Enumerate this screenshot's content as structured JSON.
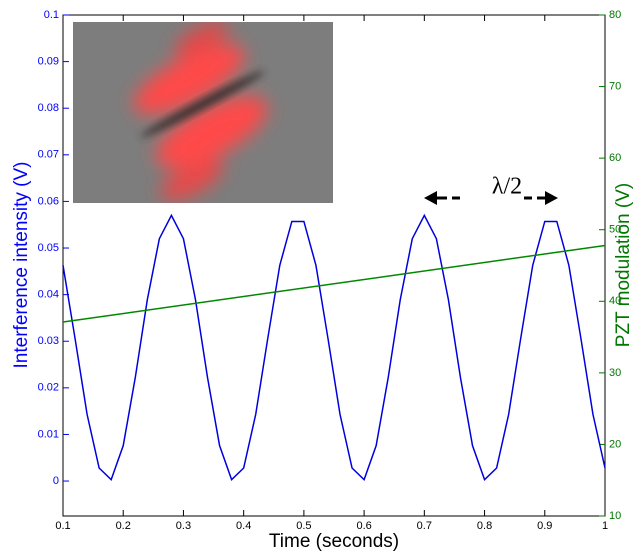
{
  "chart_data": {
    "type": "line",
    "xlabel": "Time (seconds)",
    "ylabel": "Interference intensity (V)",
    "y2label": "PZT modulation (V)",
    "annotation": "λ/2",
    "xlim": [
      0.1,
      1
    ],
    "xticks": [
      0.1,
      0.2,
      0.3,
      0.4,
      0.5,
      0.6,
      0.7,
      0.8,
      0.9,
      1
    ],
    "ylim": [
      -0.0075,
      0.1
    ],
    "yticks": [
      0,
      0.01,
      0.02,
      0.03,
      0.04,
      0.05,
      0.06,
      0.07,
      0.08,
      0.09,
      0.1
    ],
    "y2lim": [
      10,
      80
    ],
    "y2ticks": [
      10,
      20,
      30,
      40,
      50,
      60,
      70,
      80
    ],
    "ycolor": "#0000ff",
    "y2color": "#007700",
    "series": [
      {
        "color": "#0000dd",
        "x": [
          0.1,
          0.12,
          0.14,
          0.16,
          0.18,
          0.2,
          0.22,
          0.24,
          0.26,
          0.28,
          0.3,
          0.32,
          0.34,
          0.36,
          0.38,
          0.4,
          0.42,
          0.44,
          0.46,
          0.48,
          0.5,
          0.52,
          0.54,
          0.56,
          0.58,
          0.6,
          0.62,
          0.64,
          0.66,
          0.68,
          0.7,
          0.72,
          0.74,
          0.76,
          0.78,
          0.8,
          0.82,
          0.84,
          0.86,
          0.88,
          0.9,
          0.92,
          0.94,
          0.96,
          0.98,
          1
        ],
        "values": [
          0.0463,
          0.0306,
          0.0143,
          0.0028,
          0.0003,
          0.0076,
          0.0222,
          0.0389,
          0.052,
          0.057,
          0.052,
          0.0389,
          0.0222,
          0.0076,
          0.0003,
          0.0028,
          0.0143,
          0.0306,
          0.0463,
          0.0557,
          0.0557,
          0.0463,
          0.0306,
          0.0143,
          0.0028,
          0.0003,
          0.0076,
          0.0222,
          0.0389,
          0.052,
          0.057,
          0.052,
          0.0389,
          0.0222,
          0.0076,
          0.0003,
          0.0028,
          0.0143,
          0.0306,
          0.0463,
          0.0557,
          0.0557,
          0.0463,
          0.0306,
          0.0143,
          0.0028
        ]
      },
      {
        "color": "#008800",
        "axis": "y2",
        "x": [
          0.1,
          1
        ],
        "values": [
          37.1,
          47.8
        ]
      }
    ]
  }
}
